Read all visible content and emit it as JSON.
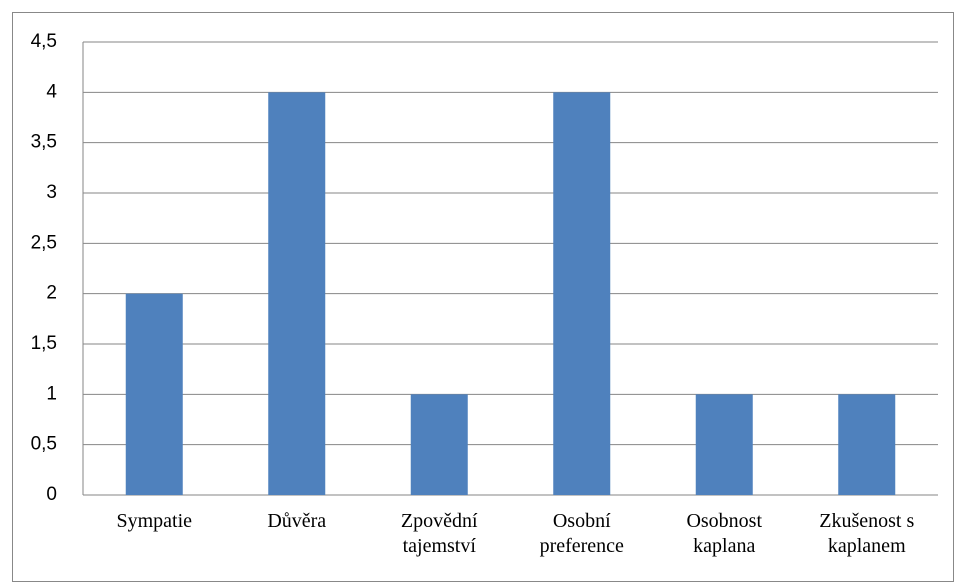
{
  "chart_data": {
    "type": "bar",
    "categories": [
      "Sympatie",
      "Důvěra",
      "Zpovědní tajemství",
      "Osobní preference",
      "Osobnost kaplana",
      "Zkušenost s kaplanem"
    ],
    "values": [
      2,
      4,
      1,
      4,
      1,
      1
    ],
    "color": "#4f81bd",
    "ylim": [
      0,
      4.5
    ],
    "yticks": [
      0,
      {
        "value": 0.5,
        "label": "0,5"
      },
      1,
      {
        "value": 1.5,
        "label": "1,5"
      },
      2,
      {
        "value": 2.5,
        "label": "2,5"
      },
      3,
      {
        "value": 3.5,
        "label": "3,5"
      },
      4,
      {
        "value": 4.5,
        "label": "4,5"
      }
    ],
    "grid": true
  }
}
